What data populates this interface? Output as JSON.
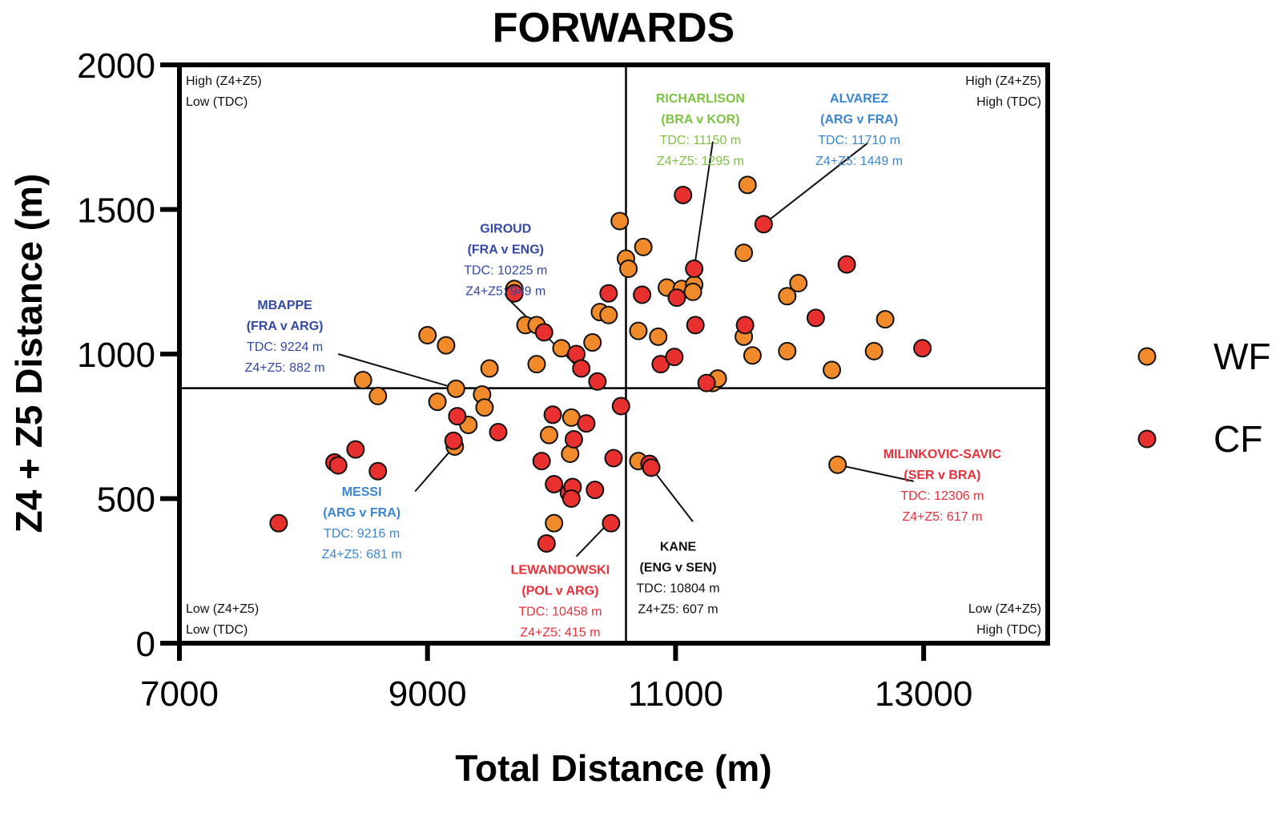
{
  "chart_data": {
    "type": "scatter",
    "title": "FORWARDS",
    "xlabel": "Total Distance (m)",
    "ylabel": "Z4 + Z5 Distance (m)",
    "xlim": [
      7000,
      14000
    ],
    "ylim": [
      0,
      2000
    ],
    "xticks": [
      7000,
      9000,
      11000,
      13000
    ],
    "yticks": [
      0,
      500,
      1000,
      1500,
      2000
    ],
    "grid": false,
    "reference_lines": {
      "x": 10600,
      "y": 882
    },
    "legend_placement": "right",
    "colors": {
      "WF": "#F18A2B",
      "CF": "#E8302F",
      "marker_edge": "#111111"
    },
    "quadrant_labels": [
      {
        "position": "top-left",
        "lines": [
          "High (Z4+Z5)",
          "Low (TDC)"
        ]
      },
      {
        "position": "top-right",
        "lines": [
          "High (Z4+Z5)",
          "High (TDC)"
        ]
      },
      {
        "position": "bottom-left",
        "lines": [
          "Low (Z4+Z5)",
          "Low (TDC)"
        ]
      },
      {
        "position": "bottom-right",
        "lines": [
          "Low (Z4+Z5)",
          "High (TDC)"
        ]
      }
    ],
    "series": [
      {
        "name": "WF",
        "points": [
          [
            8480,
            910
          ],
          [
            8600,
            855
          ],
          [
            9000,
            1065
          ],
          [
            9150,
            1030
          ],
          [
            9080,
            835
          ],
          [
            9230,
            880
          ],
          [
            9330,
            755
          ],
          [
            9440,
            860
          ],
          [
            9460,
            815
          ],
          [
            9500,
            950
          ],
          [
            9220,
            680
          ],
          [
            9700,
            1225
          ],
          [
            9790,
            1100
          ],
          [
            9880,
            1100
          ],
          [
            9880,
            965
          ],
          [
            9980,
            720
          ],
          [
            10020,
            415
          ],
          [
            10080,
            1020
          ],
          [
            10160,
            780
          ],
          [
            10150,
            655
          ],
          [
            10330,
            1040
          ],
          [
            10390,
            1145
          ],
          [
            10460,
            1135
          ],
          [
            10550,
            1460
          ],
          [
            10600,
            1330
          ],
          [
            10620,
            1295
          ],
          [
            10700,
            1080
          ],
          [
            10740,
            1370
          ],
          [
            10700,
            630
          ],
          [
            10860,
            1060
          ],
          [
            10930,
            1230
          ],
          [
            11050,
            1225
          ],
          [
            11150,
            1240
          ],
          [
            11140,
            1215
          ],
          [
            11580,
            1585
          ],
          [
            11550,
            1350
          ],
          [
            11550,
            1060
          ],
          [
            11620,
            995
          ],
          [
            11900,
            1200
          ],
          [
            11900,
            1010
          ],
          [
            11990,
            1245
          ],
          [
            11300,
            900
          ],
          [
            11340,
            915
          ],
          [
            12260,
            945
          ],
          [
            12306,
            617
          ],
          [
            12600,
            1010
          ],
          [
            12690,
            1120
          ]
        ]
      },
      {
        "name": "CF",
        "points": [
          [
            7800,
            415
          ],
          [
            8250,
            625
          ],
          [
            8280,
            615
          ],
          [
            8420,
            670
          ],
          [
            8600,
            595
          ],
          [
            9210,
            700
          ],
          [
            9240,
            785
          ],
          [
            9570,
            730
          ],
          [
            9700,
            1210
          ],
          [
            9940,
            1075
          ],
          [
            9920,
            630
          ],
          [
            9960,
            345
          ],
          [
            10010,
            790
          ],
          [
            10020,
            550
          ],
          [
            10140,
            520
          ],
          [
            10170,
            540
          ],
          [
            10160,
            500
          ],
          [
            10180,
            705
          ],
          [
            10200,
            1000
          ],
          [
            10240,
            950
          ],
          [
            10280,
            760
          ],
          [
            10370,
            905
          ],
          [
            10350,
            530
          ],
          [
            10460,
            1210
          ],
          [
            10480,
            415
          ],
          [
            10500,
            640
          ],
          [
            10560,
            820
          ],
          [
            10730,
            1205
          ],
          [
            10790,
            620
          ],
          [
            10804,
            607
          ],
          [
            10880,
            965
          ],
          [
            10990,
            990
          ],
          [
            11010,
            1195
          ],
          [
            11060,
            1550
          ],
          [
            11150,
            1295
          ],
          [
            11160,
            1100
          ],
          [
            11250,
            900
          ],
          [
            11560,
            1100
          ],
          [
            11710,
            1449
          ],
          [
            12130,
            1125
          ],
          [
            12380,
            1310
          ],
          [
            12990,
            1020
          ]
        ]
      }
    ],
    "annotations": [
      {
        "name": "RICHARLISON",
        "match": "(BRA v KOR)",
        "tdc": "TDC: 11150 m",
        "z45": "Z4+Z5: 1295 m",
        "x": 11150,
        "y": 1295,
        "color": "#7DC242",
        "text_x": 11200,
        "text_y": 1870,
        "line_to": [
          11300,
          1735
        ]
      },
      {
        "name": "ALVAREZ",
        "match": "(ARG v FRA)",
        "tdc": "TDC: 11710 m",
        "z45": "Z4+Z5: 1449 m",
        "x": 11710,
        "y": 1449,
        "color": "#3C86D0",
        "text_x": 12480,
        "text_y": 1870,
        "line_to": [
          12550,
          1730
        ]
      },
      {
        "name": "GIROUD",
        "match": "(FRA v ENG)",
        "tdc": "TDC: 10225 m",
        "z45": "Z4+Z5: 949 m",
        "x": 10225,
        "y": 949,
        "color": "#3349A1",
        "text_x": 9630,
        "text_y": 1420,
        "line_to": [
          9640,
          1195
        ]
      },
      {
        "name": "MBAPPE",
        "match": "(FRA v ARG)",
        "tdc": "TDC: 9224 m",
        "z45": "Z4+Z5: 882 m",
        "x": 9224,
        "y": 882,
        "color": "#3349A1",
        "text_x": 7850,
        "text_y": 1155,
        "line_to": [
          8280,
          1000
        ]
      },
      {
        "name": "MESSI",
        "match": "(ARG v FRA)",
        "tdc": "TDC: 9216 m",
        "z45": "Z4+Z5: 681 m",
        "x": 9216,
        "y": 681,
        "color": "#3C86D0",
        "text_x": 8470,
        "text_y": 510,
        "line_to": [
          8900,
          525
        ]
      },
      {
        "name": "LEWANDOWSKI",
        "match": "(POL v ARG)",
        "tdc": "TDC: 10458 m",
        "z45": "Z4+Z5: 415 m",
        "x": 10458,
        "y": 415,
        "color": "#E8303A",
        "text_x": 10070,
        "text_y": 240,
        "line_to": [
          10200,
          300
        ]
      },
      {
        "name": "KANE",
        "match": "(ENG v SEN)",
        "tdc": "TDC: 10804 m",
        "z45": "Z4+Z5: 607 m",
        "x": 10804,
        "y": 607,
        "color": "#111111",
        "text_x": 11020,
        "text_y": 320,
        "line_to": [
          11140,
          420
        ]
      },
      {
        "name": "MILINKOVIC-SAVIC",
        "match": "(SER v BRA)",
        "tdc": "TDC: 12306 m",
        "z45": "Z4+Z5: 617 m",
        "x": 12306,
        "y": 617,
        "color": "#E8303A",
        "text_x": 13150,
        "text_y": 640,
        "line_to": [
          12920,
          560
        ]
      }
    ],
    "legend": [
      {
        "label": "WF",
        "color": "#F18A2B"
      },
      {
        "label": "CF",
        "color": "#E8302F"
      }
    ]
  }
}
